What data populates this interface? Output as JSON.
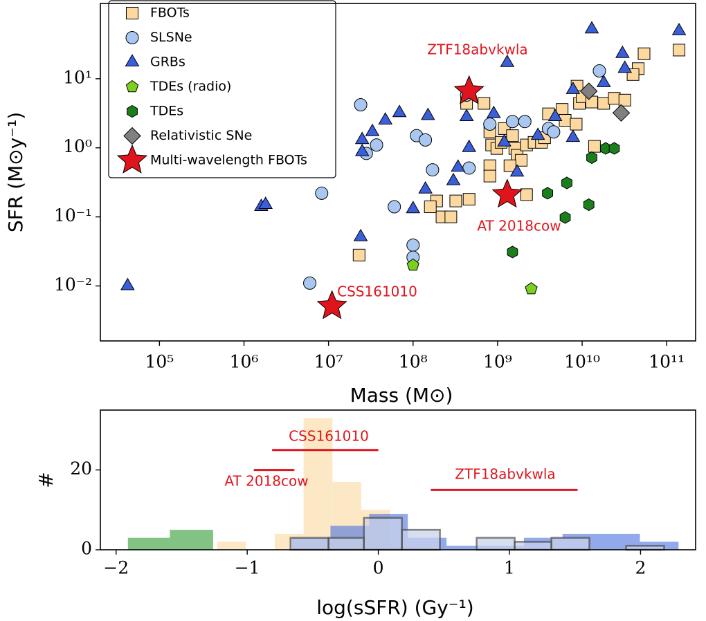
{
  "chart_data": [
    {
      "type": "scatter",
      "xlabel": "Mass (M⊙)",
      "ylabel": "SFR (M⊙y⁻¹)",
      "xscale": "log",
      "yscale": "log",
      "xlim": [
        20000,
        220000000000
      ],
      "ylim": [
        0.0016,
        123
      ],
      "xticks": [
        {
          "value": 100000,
          "label": "10⁵"
        },
        {
          "value": 1000000,
          "label": "10⁶"
        },
        {
          "value": 10000000,
          "label": "10⁷"
        },
        {
          "value": 100000000,
          "label": "10⁸"
        },
        {
          "value": 1000000000,
          "label": "10⁹"
        },
        {
          "value": 10000000000,
          "label": "10¹⁰"
        },
        {
          "value": 100000000000,
          "label": "10¹¹"
        }
      ],
      "yticks": [
        {
          "value": 0.01,
          "label": "10⁻²"
        },
        {
          "value": 0.1,
          "label": "10⁻¹"
        },
        {
          "value": 1,
          "label": "10⁰"
        },
        {
          "value": 10,
          "label": "10¹"
        }
      ],
      "legend": "upper left",
      "series": [
        {
          "name": "FBOTs",
          "color": "#fdd9a0",
          "marker": "square",
          "x": [
            23000000,
            190000000,
            220000000,
            160000000,
            320000000,
            460000000,
            430000000,
            690000000,
            810000000,
            1200000000,
            850000000,
            980000000,
            1100000000,
            1500000000,
            1600000000,
            1700000000,
            1900000000,
            1400000000,
            810000000,
            810000000,
            2200000000,
            2200000000,
            2700000000,
            4000000000,
            5800000000,
            8700000000,
            9300000000,
            10000000000,
            13000000000,
            18000000000,
            24000000000,
            32000000000,
            46000000000,
            54000000000,
            140000000000,
            14000000000,
            3300000000,
            6300000000,
            8500000000,
            3600000000,
            40000000000,
            280000000
          ],
          "y": [
            0.028,
            0.17,
            0.1,
            0.14,
            0.17,
            0.18,
            4.4,
            4.4,
            1.7,
            1.9,
            1.1,
            0.98,
            1.2,
            1.5,
            0.98,
            0.78,
            0.66,
            0.55,
            0.55,
            0.39,
            0.21,
            1.1,
            1.2,
            3.1,
            3.6,
            7.8,
            4.4,
            5.5,
            4.6,
            4.4,
            5.2,
            4.9,
            14,
            23,
            26,
            1.05,
            1.2,
            2.5,
            2.2,
            1.4,
            11.5,
            0.1
          ]
        },
        {
          "name": "SLSNe",
          "color": "#a9c7f0",
          "marker": "circle",
          "x": [
            24000000,
            37000000,
            28000000,
            8300000,
            6000000,
            60000000,
            100000000,
            100000000,
            110000000,
            140000000,
            170000000,
            430000000,
            460000000,
            810000000,
            1500000000,
            4000000000,
            4600000000,
            16000000000,
            2100000000
          ],
          "y": [
            4.2,
            1.1,
            0.83,
            0.22,
            0.011,
            0.14,
            0.039,
            0.026,
            1.5,
            1.3,
            0.48,
            5.8,
            0.51,
            2.2,
            2.4,
            1.9,
            1.7,
            13,
            2.4
          ]
        },
        {
          "name": "GRBs",
          "color": "#3a5fd9",
          "marker": "triangle",
          "x": [
            42000,
            1600000,
            1800000,
            24000000,
            25000000,
            25000000,
            33000000,
            47000000,
            69000000,
            150000000,
            100000000,
            140000000,
            300000000,
            340000000,
            460000000,
            430000000,
            1300000000,
            900000000,
            1200000000,
            3000000000,
            4800000000,
            7800000000,
            7800000000,
            13000000000,
            18000000000,
            30000000000,
            32000000000,
            140000000000,
            1700000000
          ],
          "y": [
            0.01,
            0.14,
            0.15,
            0.051,
            1.3,
            0.87,
            1.7,
            2.5,
            3.2,
            2.9,
            0.13,
            0.25,
            0.33,
            0.52,
            1.0,
            2.8,
            17,
            3.1,
            1.2,
            1.5,
            2.8,
            1.4,
            6.9,
            52,
            8.7,
            23,
            14,
            49,
            0.44
          ]
        },
        {
          "name": "TDEs (radio)",
          "color": "#7ccf1e",
          "marker": "pentagon",
          "x": [
            100000000,
            2500000000
          ],
          "y": [
            0.02,
            0.0091
          ]
        },
        {
          "name": "TDEs",
          "color": "#1b7f1b",
          "marker": "hexagon",
          "x": [
            1500000000,
            3900000000,
            6600000000,
            6300000000,
            12000000000,
            13000000000,
            19000000000,
            24000000000
          ],
          "y": [
            0.031,
            0.22,
            0.31,
            0.098,
            0.15,
            0.72,
            0.98,
            0.98
          ]
        },
        {
          "name": "Relativistic SNe",
          "color": "#808080",
          "marker": "diamond",
          "x": [
            12000000000,
            29000000000
          ],
          "y": [
            6.6,
            3.2
          ]
        },
        {
          "name": "Multi-wavelength FBOTs",
          "color": "#e0141c",
          "marker": "star",
          "x": [
            460000000,
            1300000000,
            11000000
          ],
          "y": [
            6.6,
            0.21,
            0.0051
          ]
        }
      ],
      "annotations": [
        {
          "text": "ZTF18abvkwla",
          "color": "#e0141c"
        },
        {
          "text": "AT 2018cow",
          "color": "#e0141c"
        },
        {
          "text": "CSS161010",
          "color": "#e0141c"
        }
      ]
    },
    {
      "type": "histogram",
      "xlabel": "log(sSFR) (Gy⁻¹)",
      "ylabel": "#",
      "xlim": [
        -2.12,
        2.42
      ],
      "ylim": [
        0,
        35
      ],
      "xticks": [
        {
          "value": -2,
          "label": "−2"
        },
        {
          "value": -1,
          "label": "−1"
        },
        0,
        1,
        2
      ],
      "yticks": [
        0,
        20
      ],
      "series": [
        {
          "color": "#2e9a2e",
          "bins": [
            -1.91,
            -1.59,
            -1.26
          ],
          "counts": [
            3,
            5
          ]
        },
        {
          "color": "#fcd8a0",
          "bins": [
            -1.23,
            -1.01,
            -0.79,
            -0.57,
            -0.35,
            -0.13,
            0.09,
            0.31
          ],
          "counts": [
            2,
            0,
            4,
            33,
            17,
            10,
            1
          ]
        },
        {
          "color": "#4a6fe0",
          "bins": [
            -0.66,
            -0.365,
            -0.07,
            0.225,
            0.52,
            0.815,
            1.11,
            1.405,
            1.7,
            1.995,
            2.29
          ],
          "counts": [
            3,
            6,
            9,
            3,
            1,
            1,
            3,
            4,
            4,
            2
          ]
        },
        {
          "color": "#c9d3ec",
          "edgecolor": "#555555",
          "bins": [
            -0.67,
            -0.38,
            -0.11,
            0.18,
            0.47,
            0.75,
            1.04,
            1.32,
            1.61,
            1.89,
            2.18
          ],
          "counts": [
            3,
            3,
            8,
            5,
            0,
            3,
            2,
            3,
            0,
            1
          ]
        }
      ],
      "ranges": [
        {
          "label": "CSS161010",
          "x": [
            -0.81,
            0
          ],
          "y": 25,
          "color": "#e0141c"
        },
        {
          "label": "AT 2018cow",
          "x": [
            -0.95,
            -0.64
          ],
          "y": 20,
          "color": "#e0141c"
        },
        {
          "label": "ZTF18abvkwla",
          "x": [
            0.4,
            1.52
          ],
          "y": 15,
          "color": "#e0141c"
        }
      ]
    }
  ]
}
